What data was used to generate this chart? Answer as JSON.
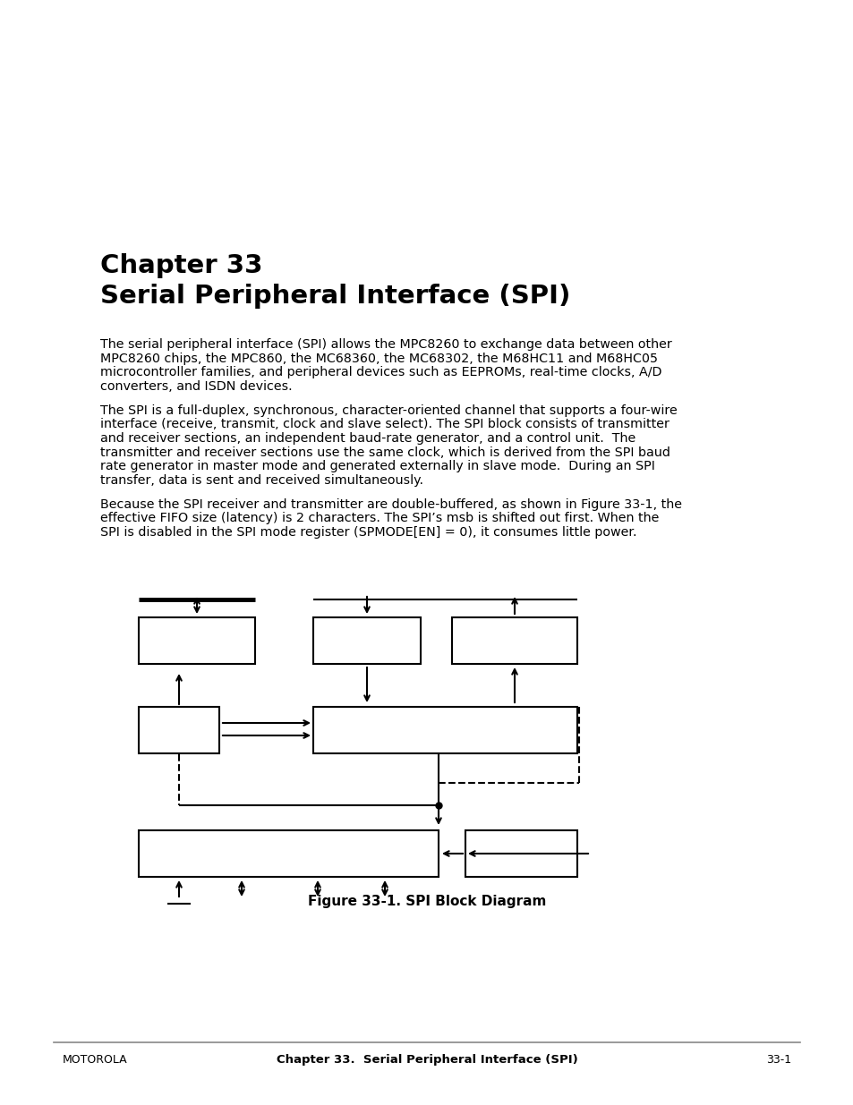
{
  "title_line1": "Chapter 33",
  "title_line2": "Serial Peripheral Interface (SPI)",
  "para1_lines": [
    "The serial peripheral interface (SPI) allows the MPC8260 to exchange data between other",
    "MPC8260 chips, the MPC860, the MC68360, the MC68302, the M68HC11 and M68HC05",
    "microcontroller families, and peripheral devices such as EEPROMs, real-time clocks, A/D",
    "converters, and ISDN devices."
  ],
  "para2_lines": [
    "The SPI is a full-duplex, synchronous, character-oriented channel that supports a four-wire",
    "interface (receive, transmit, clock and slave select). The SPI block consists of transmitter",
    "and receiver sections, an independent baud-rate generator, and a control unit.  The",
    "transmitter and receiver sections use the same clock, which is derived from the SPI baud",
    "rate generator in master mode and generated externally in slave mode.  During an SPI",
    "transfer, data is sent and received simultaneously."
  ],
  "para3_lines": [
    "Because the SPI receiver and transmitter are double-buffered, as shown in Figure 33-1, the",
    "effective FIFO size (latency) is 2 characters. The SPI’s msb is shifted out first. When the",
    "SPI is disabled in the SPI mode register (SPMODE[EN] = 0), it consumes little power."
  ],
  "figure_caption": "Figure 33-1. SPI Block Diagram",
  "footer_left": "MOTOROLA",
  "footer_center": "Chapter 33.  Serial Peripheral Interface (SPI)",
  "footer_right": "33-1",
  "bg_color": "#ffffff",
  "text_color": "#000000"
}
